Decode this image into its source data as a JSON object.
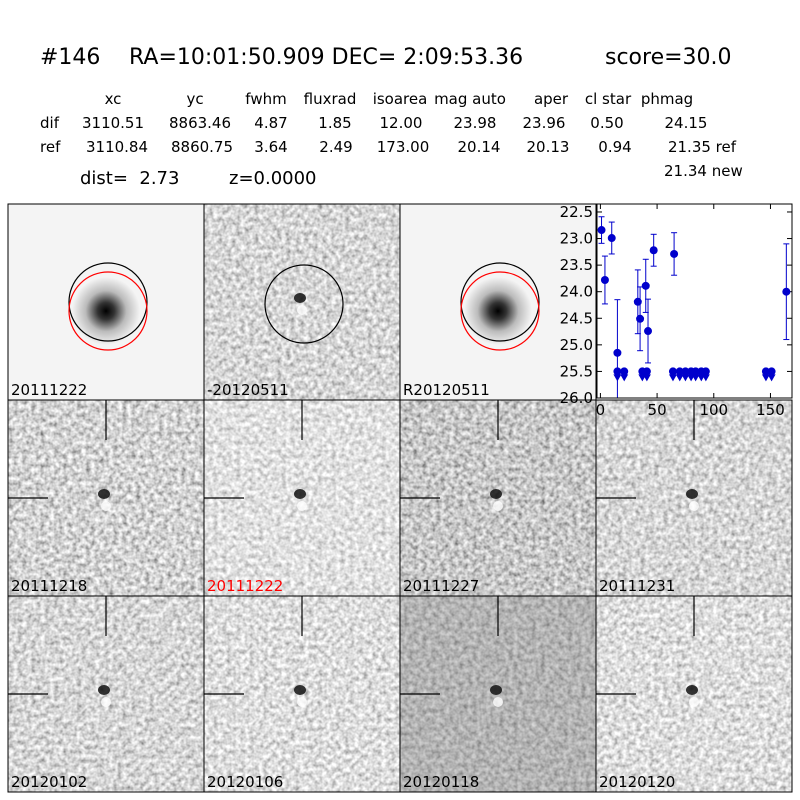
{
  "header": {
    "id": "#146",
    "coords": "RA=10:01:50.909 DEC= 2:09:53.36",
    "score": "score=30.0"
  },
  "table": {
    "columns": [
      "xc",
      "yc",
      "fwhm",
      "fluxrad",
      "isoarea",
      "mag auto",
      "aper",
      "cl star",
      "phmag"
    ],
    "rows": [
      [
        "dif",
        "3110.51",
        "8863.46",
        "4.87",
        "1.85",
        "12.00",
        "23.98",
        "23.96",
        "0.50",
        "24.15"
      ],
      [
        "ref",
        "3110.84",
        "8860.75",
        "3.64",
        "2.49",
        "173.00",
        "20.14",
        "20.13",
        "0.94",
        "21.35 ref"
      ]
    ],
    "extra": "21.34 new",
    "dist": "dist=  2.73",
    "z": "z=0.0000"
  },
  "stamps": [
    {
      "label": "20111222"
    },
    {
      "label": "-20120511"
    },
    {
      "label": "R20120511"
    },
    {
      "label": "20111218"
    },
    {
      "label": "20111222",
      "label_color": "#ff0000"
    },
    {
      "label": "20111227"
    },
    {
      "label": "20111231"
    },
    {
      "label": "20120102"
    },
    {
      "label": "20120106"
    },
    {
      "label": "20120118"
    },
    {
      "label": "20120120"
    }
  ],
  "chart_data": {
    "type": "scatter",
    "xlim": [
      -3,
      169
    ],
    "ylim": [
      22.35,
      26.0
    ],
    "y_inverted": true,
    "xticks": [
      0,
      50,
      100,
      150
    ],
    "yticks": [
      22.5,
      {
        "value": 23,
        "label": "23.0"
      },
      23.5,
      {
        "value": 24,
        "label": "24.0"
      },
      24.5,
      {
        "value": 25,
        "label": "25.0"
      },
      25.5,
      {
        "value": 26,
        "label": "26.0"
      }
    ],
    "series": [
      {
        "color": "#0000cc",
        "marker": "circle",
        "x": [
          1,
          4,
          10,
          15,
          33,
          35,
          40,
          42,
          47,
          65,
          164
        ],
        "values": [
          22.84,
          23.78,
          22.99,
          25.15,
          24.19,
          24.51,
          23.89,
          24.74,
          23.22,
          23.29,
          24.0
        ],
        "errors": [
          0.25,
          0.45,
          0.3,
          1.0,
          0.6,
          0.6,
          0.5,
          0.6,
          0.3,
          0.4,
          0.9
        ]
      },
      {
        "color": "#0000cc",
        "marker": "limit",
        "x": [
          15,
          21,
          37,
          41,
          64,
          70,
          75,
          80,
          84,
          89,
          93,
          146,
          151
        ],
        "values": [
          25.5,
          25.5,
          25.5,
          25.5,
          25.5,
          25.5,
          25.5,
          25.5,
          25.5,
          25.5,
          25.5,
          25.5,
          25.5
        ]
      }
    ]
  }
}
